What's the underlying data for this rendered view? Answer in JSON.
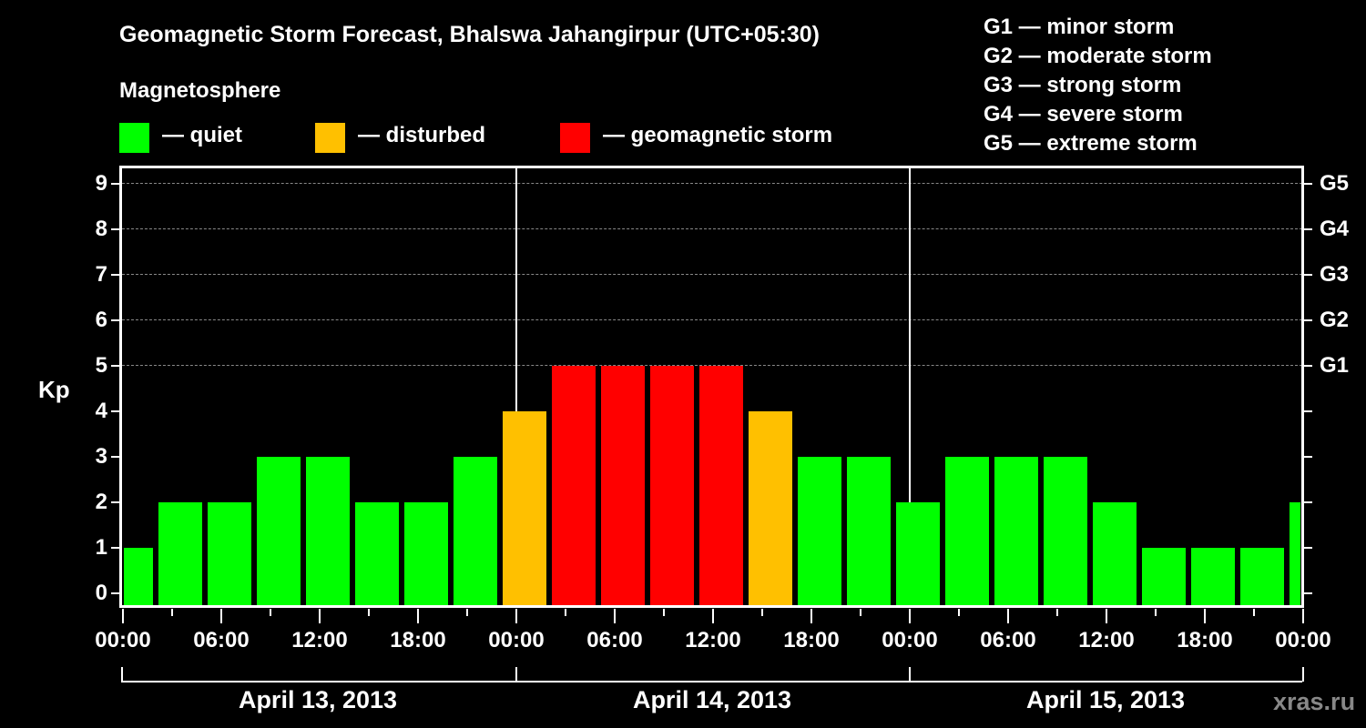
{
  "header": {
    "title": "Geomagnetic Storm Forecast, Bhalswa Jahangirpur (UTC+05:30)",
    "subtitle": "Magnetosphere"
  },
  "legend": [
    {
      "label": "— quiet",
      "color": "#00ff00"
    },
    {
      "label": "— disturbed",
      "color": "#ffc000"
    },
    {
      "label": "— geomagnetic storm",
      "color": "#ff0000"
    }
  ],
  "g_scale": [
    "G1 — minor storm",
    "G2 — moderate storm",
    "G3 — strong storm",
    "G4 — severe storm",
    "G5 — extreme storm"
  ],
  "axis": {
    "ylabel": "Kp",
    "yticks": [
      "0",
      "1",
      "2",
      "3",
      "4",
      "5",
      "6",
      "7",
      "8",
      "9"
    ],
    "right_ticks": [
      "G1",
      "G2",
      "G3",
      "G4",
      "G5"
    ],
    "xticks": [
      "00:00",
      "06:00",
      "12:00",
      "18:00",
      "00:00",
      "06:00",
      "12:00",
      "18:00",
      "00:00",
      "06:00",
      "12:00",
      "18:00",
      "00:00"
    ],
    "dates": [
      "April 13, 2013",
      "April 14, 2013",
      "April 15, 2013"
    ]
  },
  "watermark": "xras.ru",
  "colors": {
    "quiet": "#00ff00",
    "disturbed": "#ffc000",
    "storm": "#ff0000"
  },
  "chart_data": {
    "type": "bar",
    "title": "Geomagnetic Storm Forecast, Bhalswa Jahangirpur (UTC+05:30)",
    "xlabel": "",
    "ylabel": "Kp",
    "ylim": [
      0,
      9
    ],
    "grid": true,
    "legend": [
      "quiet",
      "disturbed",
      "geomagnetic storm"
    ],
    "categories": [
      "Apr 13 00:30",
      "Apr 13 03:30",
      "Apr 13 06:30",
      "Apr 13 09:30",
      "Apr 13 12:30",
      "Apr 13 15:30",
      "Apr 13 18:30",
      "Apr 13 21:30",
      "Apr 14 00:30",
      "Apr 14 03:30",
      "Apr 14 06:30",
      "Apr 14 09:30",
      "Apr 14 12:30",
      "Apr 14 15:30",
      "Apr 14 18:30",
      "Apr 14 21:30",
      "Apr 15 00:30",
      "Apr 15 03:30",
      "Apr 15 06:30",
      "Apr 15 09:30",
      "Apr 15 12:30",
      "Apr 15 15:30",
      "Apr 15 18:30",
      "Apr 15 21:30",
      "Apr 16 00:30"
    ],
    "values": [
      1,
      2,
      2,
      3,
      3,
      2,
      2,
      3,
      4,
      5,
      5,
      5,
      5,
      4,
      3,
      3,
      2,
      3,
      3,
      3,
      2,
      1,
      1,
      1,
      2
    ],
    "levels": [
      "quiet",
      "quiet",
      "quiet",
      "quiet",
      "quiet",
      "quiet",
      "quiet",
      "quiet",
      "disturbed",
      "storm",
      "storm",
      "storm",
      "storm",
      "disturbed",
      "quiet",
      "quiet",
      "quiet",
      "quiet",
      "quiet",
      "quiet",
      "quiet",
      "quiet",
      "quiet",
      "quiet",
      "quiet"
    ],
    "right_axis": {
      "G1": 5,
      "G2": 6,
      "G3": 7,
      "G4": 8,
      "G5": 9
    }
  }
}
